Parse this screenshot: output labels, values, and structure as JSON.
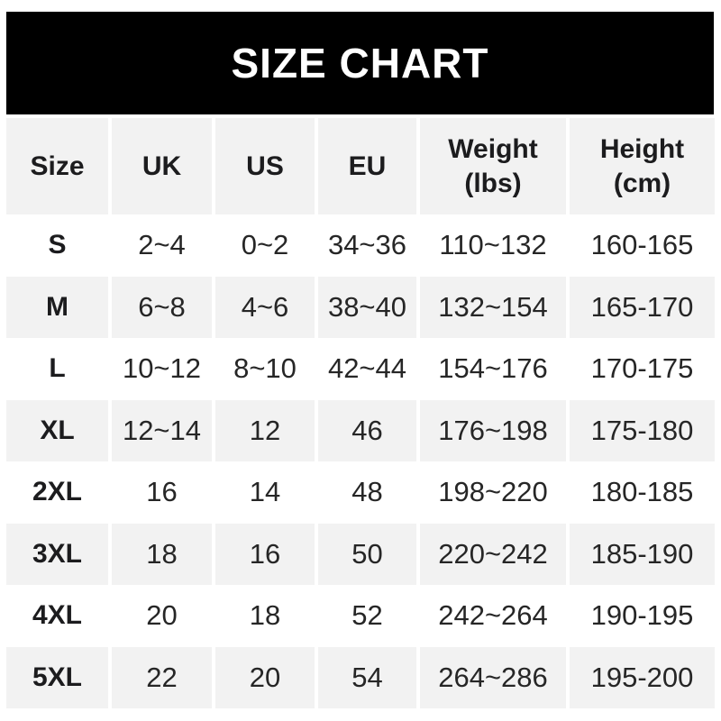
{
  "title": "SIZE CHART",
  "chart_data": {
    "type": "table",
    "title": "SIZE CHART",
    "columns": [
      {
        "key": "size",
        "label": "Size",
        "sub": ""
      },
      {
        "key": "uk",
        "label": "UK",
        "sub": ""
      },
      {
        "key": "us",
        "label": "US",
        "sub": ""
      },
      {
        "key": "eu",
        "label": "EU",
        "sub": ""
      },
      {
        "key": "weight",
        "label": "Weight",
        "sub": "(lbs)"
      },
      {
        "key": "height",
        "label": "Height",
        "sub": "(cm)"
      }
    ],
    "rows": [
      [
        "S",
        "2~4",
        "0~2",
        "34~36",
        "110~132",
        "160-165"
      ],
      [
        "M",
        "6~8",
        "4~6",
        "38~40",
        "132~154",
        "165-170"
      ],
      [
        "L",
        "10~12",
        "8~10",
        "42~44",
        "154~176",
        "170-175"
      ],
      [
        "XL",
        "12~14",
        "12",
        "46",
        "176~198",
        "175-180"
      ],
      [
        "2XL",
        "16",
        "14",
        "48",
        "198~220",
        "180-185"
      ],
      [
        "3XL",
        "18",
        "16",
        "50",
        "220~242",
        "185-190"
      ],
      [
        "4XL",
        "20",
        "18",
        "52",
        "242~264",
        "190-195"
      ],
      [
        "5XL",
        "22",
        "20",
        "54",
        "264~286",
        "195-200"
      ]
    ],
    "layout_hints": {
      "header_row_shaded": true,
      "alternating_shaded_rows": [
        "M",
        "XL",
        "3XL",
        "5XL"
      ],
      "weight_separator": "~",
      "height_separator": "-"
    }
  },
  "colors": {
    "banner_bg": "#000000",
    "banner_text": "#ffffff",
    "row_alt_bg": "#f2f2f2",
    "cell_text": "#262626",
    "label_text": "#1c1c1e"
  }
}
